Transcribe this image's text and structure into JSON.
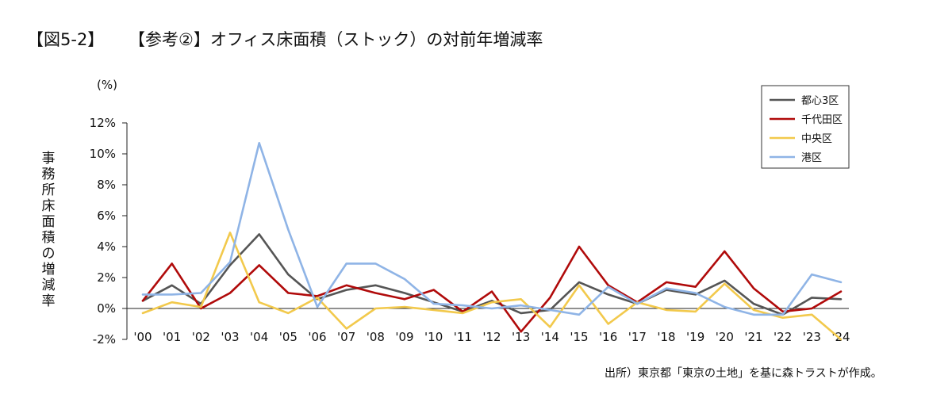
{
  "figure_number": "【図5-2】",
  "chart_data": {
    "type": "line",
    "title": "【参考②】オフィス床面積（ストック）の対前年増減率",
    "unit": "(%)",
    "ylabel": "事務所床面積の増減率",
    "ylim": [
      -2,
      12
    ],
    "y_ticks": [
      12,
      10,
      8,
      6,
      4,
      2,
      0,
      -2
    ],
    "y_tick_labels": [
      "12%",
      "10%",
      "8%",
      "6%",
      "4%",
      "2%",
      "0%",
      "-2%"
    ],
    "categories": [
      "'00",
      "'01",
      "'02",
      "'03",
      "'04",
      "'05",
      "'06",
      "'07",
      "'08",
      "'09",
      "'10",
      "'11",
      "'12",
      "'13",
      "'14",
      "'15",
      "'16",
      "'17",
      "'18",
      "'19",
      "'20",
      "'21",
      "'22",
      "'23",
      "'24"
    ],
    "legend_position": "top-right",
    "grid": false,
    "series": [
      {
        "name": "都心3区",
        "color": "#555555",
        "values": [
          0.5,
          1.5,
          0.3,
          2.8,
          4.8,
          2.2,
          0.6,
          1.2,
          1.5,
          1.0,
          0.4,
          -0.2,
          0.5,
          -0.3,
          -0.1,
          1.7,
          0.9,
          0.3,
          1.2,
          0.9,
          1.8,
          0.3,
          -0.4,
          0.7,
          0.6
        ]
      },
      {
        "name": "千代田区",
        "color": "#b00a0a",
        "values": [
          0.5,
          2.9,
          0.0,
          1.0,
          2.8,
          1.0,
          0.8,
          1.5,
          1.0,
          0.6,
          1.2,
          -0.2,
          1.1,
          -1.5,
          0.7,
          4.0,
          1.5,
          0.4,
          1.7,
          1.4,
          3.7,
          1.3,
          -0.2,
          0.0,
          1.1
        ]
      },
      {
        "name": "中央区",
        "color": "#f2c94c",
        "values": [
          -0.3,
          0.4,
          0.1,
          4.9,
          0.4,
          -0.3,
          0.7,
          -1.3,
          0.0,
          0.1,
          -0.1,
          -0.3,
          0.4,
          0.6,
          -1.2,
          1.5,
          -1.0,
          0.4,
          -0.1,
          -0.2,
          1.6,
          -0.1,
          -0.6,
          -0.4,
          -2.0
        ]
      },
      {
        "name": "港区",
        "color": "#8fb4e6",
        "values": [
          0.9,
          0.9,
          1.0,
          3.0,
          10.7,
          5.1,
          0.1,
          2.9,
          2.9,
          1.9,
          0.3,
          0.2,
          0.0,
          0.2,
          -0.1,
          -0.4,
          1.4,
          0.3,
          1.3,
          1.0,
          0.1,
          -0.4,
          -0.4,
          2.2,
          1.7
        ]
      }
    ]
  },
  "source": "出所）東京都「東京の土地」を基に森トラストが作成。"
}
